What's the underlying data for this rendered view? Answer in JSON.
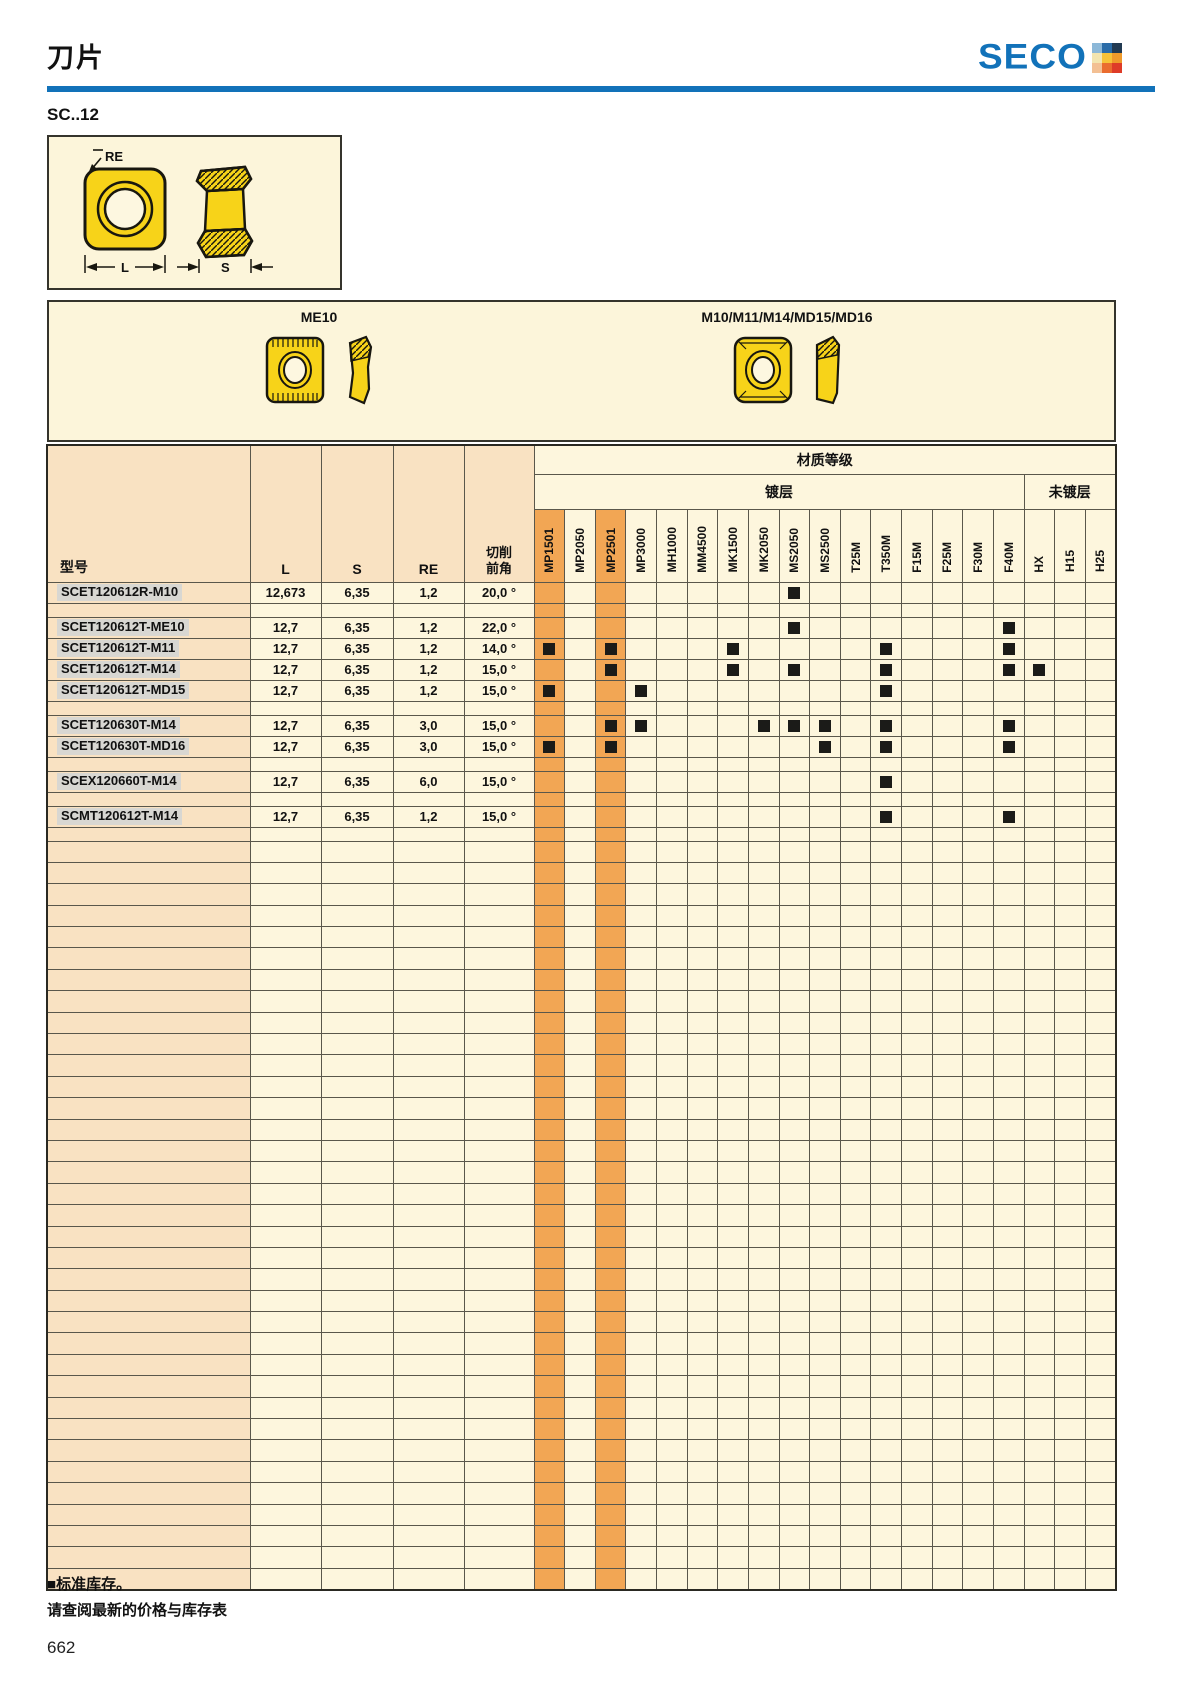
{
  "page": {
    "title": "刀片",
    "section_code": "SC..12",
    "page_number": "662"
  },
  "logo": {
    "text": "SECO",
    "grid": [
      [
        "#8cb8d8",
        "#2a6ca8",
        "#223a52"
      ],
      [
        "#f3e5b0",
        "#f6c238",
        "#ef9a2b"
      ],
      [
        "#f3c094",
        "#ea6c2f",
        "#de3c28"
      ]
    ]
  },
  "diagram": {
    "re_label": "RE",
    "l_label": "L",
    "s_label": "S"
  },
  "variant_band": {
    "left_label": "ME10",
    "right_label": "M10/M11/M14/MD15/MD16"
  },
  "table": {
    "grade_group_header": "材质等级",
    "coated_header": "镀层",
    "uncoated_header": "未镀层",
    "model_header": "型号",
    "l_header": "L",
    "s_header": "S",
    "re_header": "RE",
    "angle_header_line1": "切削",
    "angle_header_line2": "前角",
    "grades": [
      "MP1501",
      "MP2050",
      "MP2501",
      "MP3000",
      "MH1000",
      "MM4500",
      "MK1500",
      "MK2050",
      "MS2050",
      "MS2500",
      "T25M",
      "T350M",
      "F15M",
      "F25M",
      "F30M",
      "F40M",
      "HX",
      "H15",
      "H25"
    ],
    "highlighted_grades": [
      "MP1501",
      "MP2501"
    ],
    "coated_grade_count": 16,
    "uncoated_grade_count": 3,
    "rows": [
      {
        "model": "SCET120612R-M10",
        "l": "12,673",
        "s": "6,35",
        "re": "1,2",
        "angle": "20,0 °",
        "marks": [
          "MS2050"
        ]
      },
      {
        "separator": true
      },
      {
        "model": "SCET120612T-ME10",
        "l": "12,7",
        "s": "6,35",
        "re": "1,2",
        "angle": "22,0 °",
        "marks": [
          "MS2050",
          "F40M"
        ]
      },
      {
        "model": "SCET120612T-M11",
        "l": "12,7",
        "s": "6,35",
        "re": "1,2",
        "angle": "14,0 °",
        "marks": [
          "MP1501",
          "MP2501",
          "MK1500",
          "T350M",
          "F40M"
        ]
      },
      {
        "model": "SCET120612T-M14",
        "l": "12,7",
        "s": "6,35",
        "re": "1,2",
        "angle": "15,0 °",
        "marks": [
          "MP2501",
          "MK1500",
          "MS2050",
          "T350M",
          "F40M",
          "HX"
        ]
      },
      {
        "model": "SCET120612T-MD15",
        "l": "12,7",
        "s": "6,35",
        "re": "1,2",
        "angle": "15,0 °",
        "marks": [
          "MP1501",
          "MP3000",
          "T350M"
        ]
      },
      {
        "separator": true
      },
      {
        "model": "SCET120630T-M14",
        "l": "12,7",
        "s": "6,35",
        "re": "3,0",
        "angle": "15,0 °",
        "marks": [
          "MP2501",
          "MP3000",
          "MK2050",
          "MS2050",
          "MS2500",
          "T350M",
          "F40M"
        ]
      },
      {
        "model": "SCET120630T-MD16",
        "l": "12,7",
        "s": "6,35",
        "re": "3,0",
        "angle": "15,0 °",
        "marks": [
          "MP1501",
          "MP2501",
          "MS2500",
          "T350M",
          "F40M"
        ]
      },
      {
        "separator": true
      },
      {
        "model": "SCEX120660T-M14",
        "l": "12,7",
        "s": "6,35",
        "re": "6,0",
        "angle": "15,0 °",
        "marks": [
          "T350M"
        ]
      },
      {
        "separator": true
      },
      {
        "model": "SCMT120612T-M14",
        "l": "12,7",
        "s": "6,35",
        "re": "1,2",
        "angle": "15,0 °",
        "marks": [
          "T350M",
          "F40M"
        ]
      },
      {
        "separator": true
      }
    ],
    "trailing_empty_rows": 35
  },
  "footnotes": {
    "legend_square": "■",
    "stock_note": "标准库存。",
    "availability_note": "请查阅最新的价格与库存表"
  },
  "colors": {
    "accent_orange": "#f2a654",
    "cream": "#fdf6dd",
    "peach": "#f9e2c2",
    "box_cream": "#fcf5da",
    "mark_black": "#1b1b18",
    "seco_blue": "#1272b9"
  }
}
